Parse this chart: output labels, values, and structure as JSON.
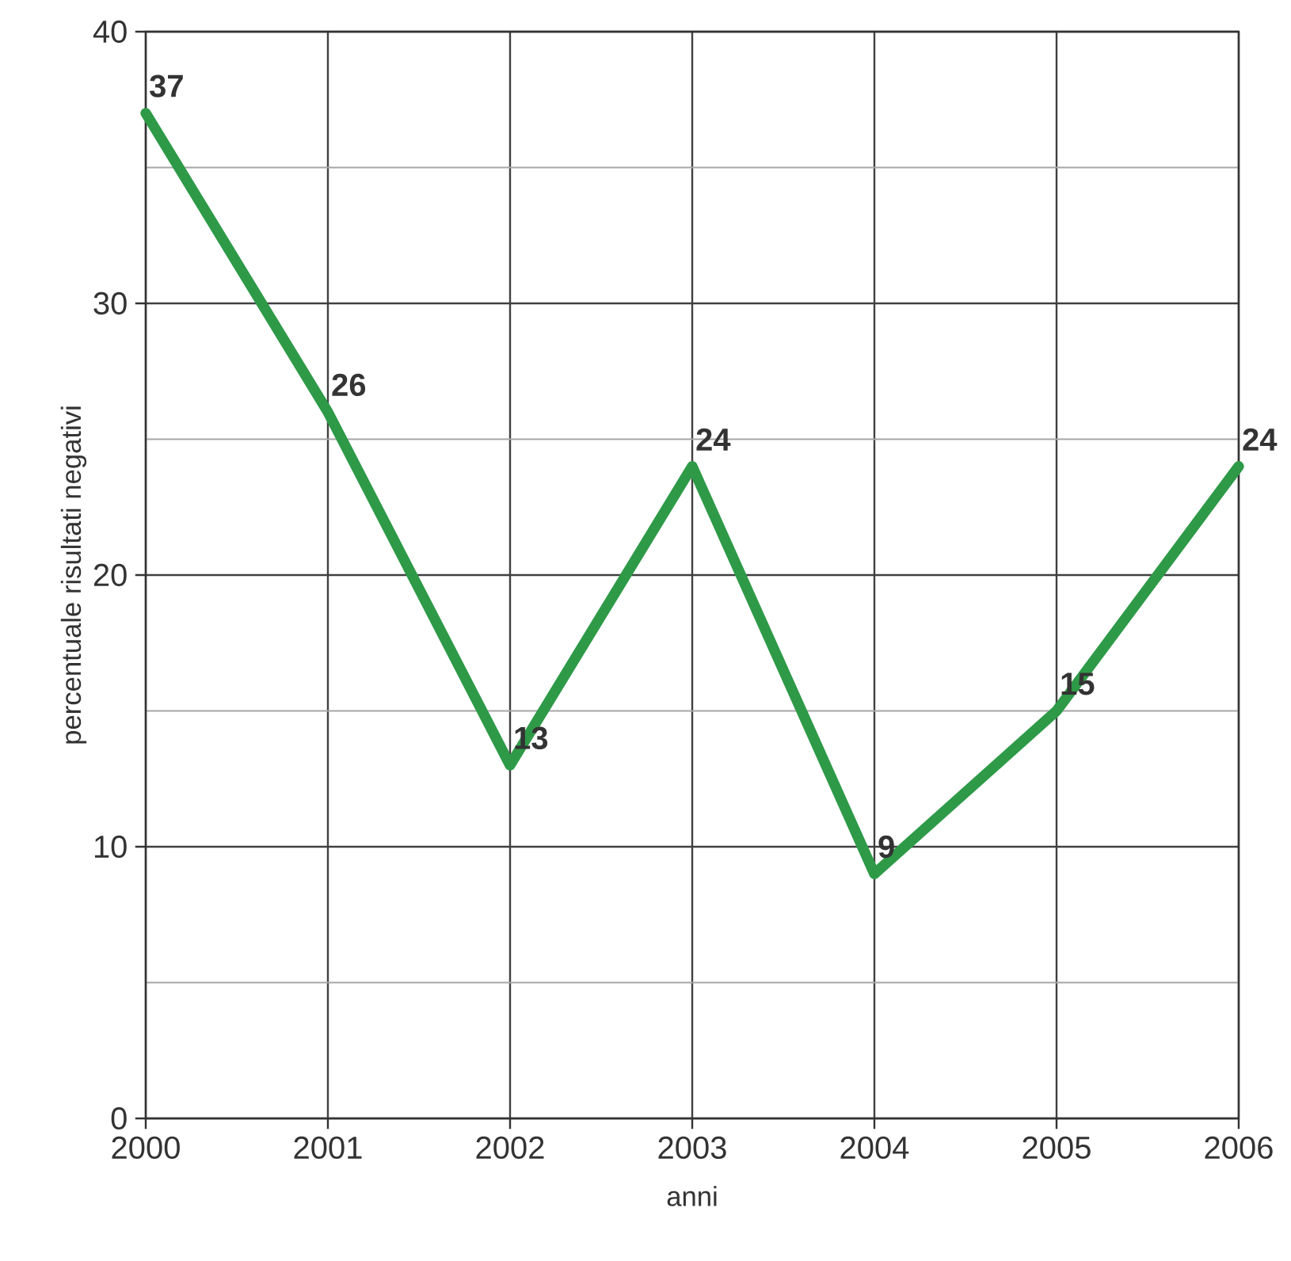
{
  "chart_data": {
    "type": "line",
    "xlabel": "anni",
    "ylabel": "percentuale risultati negativi",
    "x": [
      2000,
      2001,
      2002,
      2003,
      2004,
      2005,
      2006
    ],
    "series": [
      {
        "color": "#2e9a48",
        "values": [
          37,
          26,
          13,
          24,
          9,
          15,
          24
        ]
      }
    ],
    "xlim": [
      2000,
      2006
    ],
    "xticks": [
      2000,
      2001,
      2002,
      2003,
      2004,
      2005,
      2006
    ],
    "ylim": [
      0,
      40
    ],
    "yticks": [
      0,
      {
        "value": 5,
        "label": null
      },
      10,
      {
        "value": 15,
        "label": null
      },
      20,
      {
        "value": 25,
        "label": null
      },
      30,
      {
        "value": 35,
        "label": null
      },
      40
    ],
    "grid": true,
    "data_labels": true,
    "marker": "none",
    "line_style": "solid"
  }
}
